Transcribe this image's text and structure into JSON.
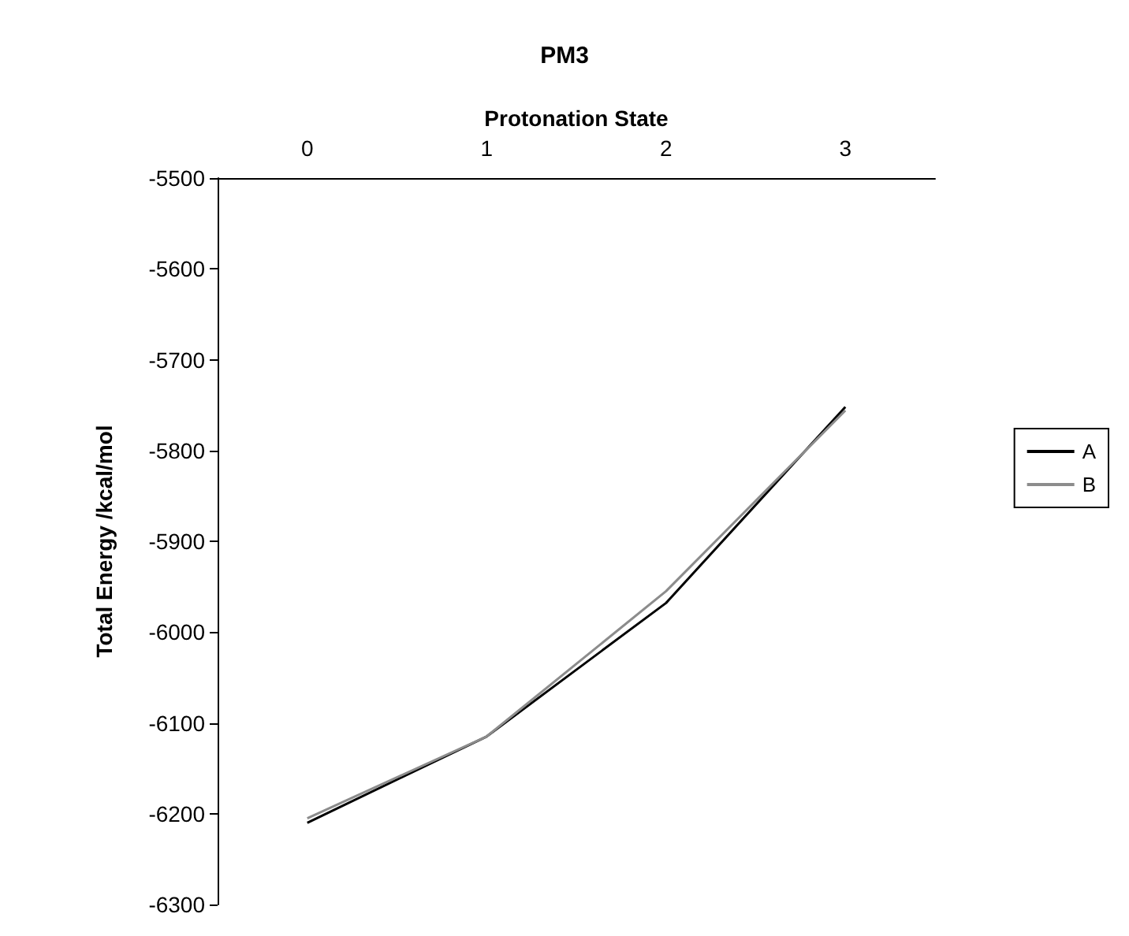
{
  "chart_data": {
    "type": "line",
    "title": "PM3",
    "xlabel": "Protonation State",
    "ylabel": "Total Energy /kcal/mol",
    "categories": [
      "0",
      "1",
      "2",
      "3"
    ],
    "series": [
      {
        "name": "A",
        "color": "#000000",
        "values": [
          -6210,
          -6115,
          -5968,
          -5752
        ]
      },
      {
        "name": "B",
        "color": "#8c8c8c",
        "values": [
          -6205,
          -6115,
          -5955,
          -5756
        ]
      }
    ],
    "ylim": [
      -6300,
      -5500
    ],
    "yticks": [
      -6300,
      -6200,
      -6100,
      -6000,
      -5900,
      -5800,
      -5700,
      -5600,
      -5500
    ],
    "grid": false,
    "legend": "right",
    "marker": "none",
    "line_style": "solid"
  }
}
